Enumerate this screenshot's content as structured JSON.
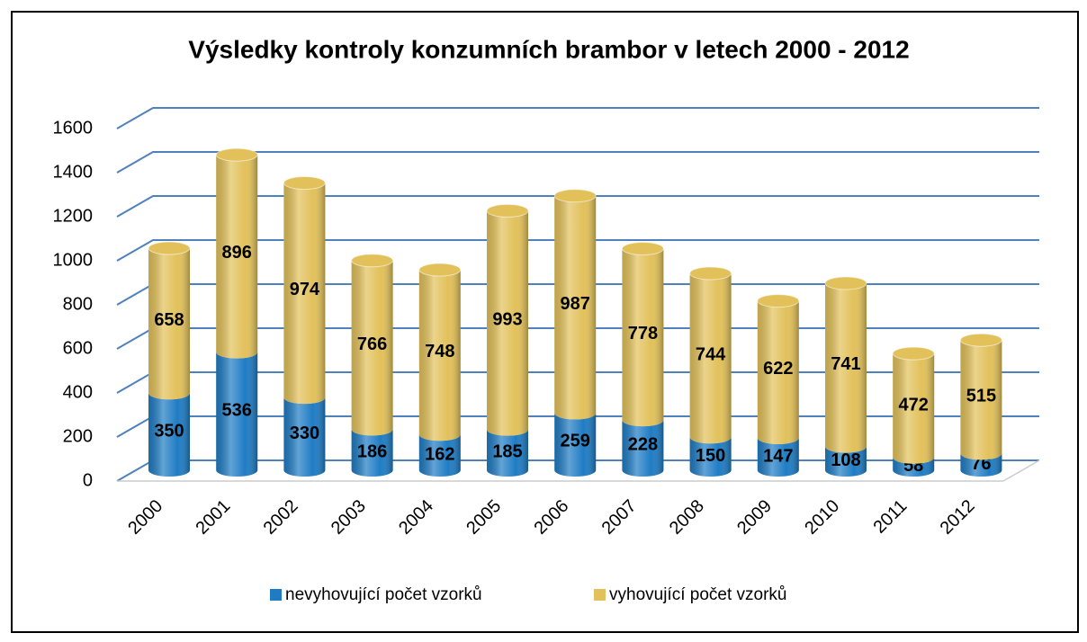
{
  "chart_data": {
    "type": "bar",
    "stacked": true,
    "cylinder_3d": true,
    "title": "Výsledky kontroly konzumních brambor v letech 2000 - 2012",
    "categories": [
      "2000",
      "2001",
      "2002",
      "2003",
      "2004",
      "2005",
      "2006",
      "2007",
      "2008",
      "2009",
      "2010",
      "2011",
      "2012"
    ],
    "series": [
      {
        "name": "nevyhovující počet vzorků",
        "color": "#1f7cc4",
        "values": [
          350,
          536,
          330,
          186,
          162,
          185,
          259,
          228,
          150,
          147,
          108,
          58,
          76
        ]
      },
      {
        "name": "vyhovující počet vzorků",
        "color": "#e2c15a",
        "values": [
          658,
          896,
          974,
          766,
          748,
          993,
          987,
          778,
          744,
          622,
          741,
          472,
          515
        ]
      }
    ],
    "ylim": [
      0,
      1600
    ],
    "yticks": [
      0,
      200,
      400,
      600,
      800,
      1000,
      1200,
      1400,
      1600
    ],
    "grid": true,
    "legend": "bottom"
  }
}
